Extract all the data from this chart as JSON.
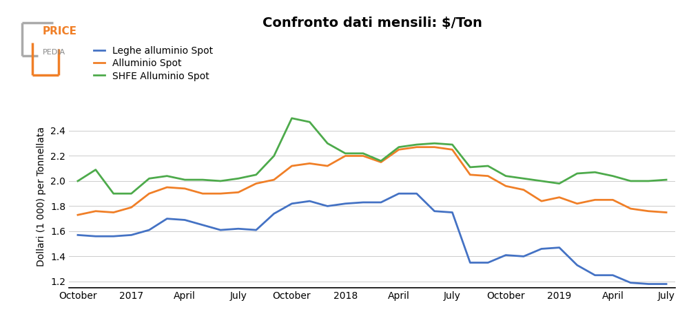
{
  "title": "Confronto dati mensili: $/Ton",
  "ylabel": "Dollari (1 000) per Tonnellata",
  "legend_labels": [
    "Leghe alluminio Spot",
    "Alluminio Spot",
    "SHFE Alluminio Spot"
  ],
  "colors": [
    "#4472c4",
    "#f07f27",
    "#4daa4b"
  ],
  "line_width": 2.0,
  "x_tick_labels": [
    "October",
    "2017",
    "April",
    "July",
    "October",
    "2018",
    "April",
    "July",
    "October",
    "2019",
    "April",
    "July"
  ],
  "x_tick_positions": [
    0,
    3,
    6,
    9,
    12,
    15,
    18,
    21,
    24,
    27,
    30,
    33
  ],
  "ylim": [
    1.15,
    2.6
  ],
  "yticks": [
    1.2,
    1.4,
    1.6,
    1.8,
    2.0,
    2.2,
    2.4
  ],
  "blue_data": [
    1.57,
    1.56,
    1.56,
    1.57,
    1.61,
    1.7,
    1.69,
    1.65,
    1.61,
    1.62,
    1.61,
    1.74,
    1.82,
    1.84,
    1.8,
    1.82,
    1.83,
    1.83,
    1.9,
    1.9,
    1.76,
    1.75,
    1.35,
    1.35,
    1.41,
    1.4,
    1.46,
    1.47,
    1.33,
    1.25,
    1.25,
    1.19,
    1.18,
    1.18
  ],
  "orange_data": [
    1.73,
    1.76,
    1.75,
    1.79,
    1.9,
    1.95,
    1.94,
    1.9,
    1.9,
    1.91,
    1.98,
    2.01,
    2.12,
    2.14,
    2.12,
    2.2,
    2.2,
    2.15,
    2.25,
    2.27,
    2.27,
    2.25,
    2.05,
    2.04,
    1.96,
    1.93,
    1.84,
    1.87,
    1.82,
    1.85,
    1.85,
    1.78,
    1.76,
    1.75
  ],
  "green_data": [
    2.0,
    2.09,
    1.9,
    1.9,
    2.02,
    2.04,
    2.01,
    2.01,
    2.0,
    2.02,
    2.05,
    2.2,
    2.5,
    2.47,
    2.3,
    2.22,
    2.22,
    2.16,
    2.27,
    2.29,
    2.3,
    2.29,
    2.11,
    2.12,
    2.04,
    2.02,
    2.0,
    1.98,
    2.06,
    2.07,
    2.04,
    2.0,
    2.0,
    2.01
  ],
  "logo_price_color": "#f07f27",
  "logo_pedia_color": "#888888",
  "logo_box_color": "#888888",
  "bg_color": "#ffffff",
  "grid_color": "#cccccc",
  "title_fontsize": 14,
  "legend_fontsize": 10,
  "tick_fontsize": 10,
  "ylabel_fontsize": 10
}
